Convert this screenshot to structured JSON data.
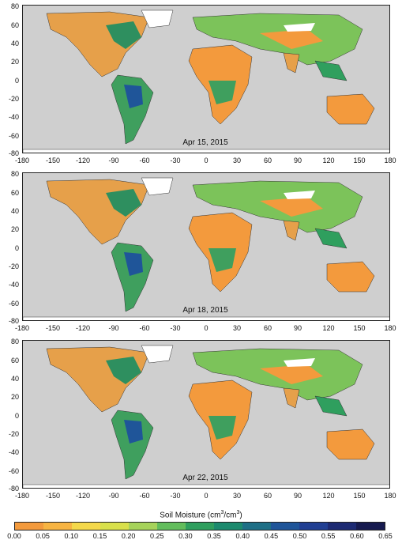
{
  "panels": [
    {
      "date": "Apr 15, 2015"
    },
    {
      "date": "Apr 18, 2015"
    },
    {
      "date": "Apr 22, 2015"
    }
  ],
  "axes": {
    "y_ticks": [
      "80",
      "60",
      "40",
      "20",
      "0",
      "-20",
      "-40",
      "-60",
      "-80"
    ],
    "x_ticks": [
      "-180",
      "-150",
      "-120",
      "-90",
      "-60",
      "-30",
      "0",
      "30",
      "60",
      "90",
      "120",
      "150",
      "180"
    ]
  },
  "colorbar": {
    "title": "Soil Moisture (cm",
    "title_sup1": "3",
    "title_mid": "/cm",
    "title_sup2": "3",
    "title_end": ")",
    "ticks": [
      "0.00",
      "0.05",
      "0.10",
      "0.15",
      "0.20",
      "0.25",
      "0.30",
      "0.35",
      "0.40",
      "0.45",
      "0.50",
      "0.55",
      "0.60",
      "0.65"
    ],
    "colors": [
      "#f39a3d",
      "#f7b442",
      "#f4d84a",
      "#d8e04b",
      "#a6d35a",
      "#62bd5c",
      "#2f9f5e",
      "#1c8a6e",
      "#1e6f86",
      "#1f5599",
      "#213f93",
      "#1d2a73",
      "#161a4f"
    ]
  }
}
